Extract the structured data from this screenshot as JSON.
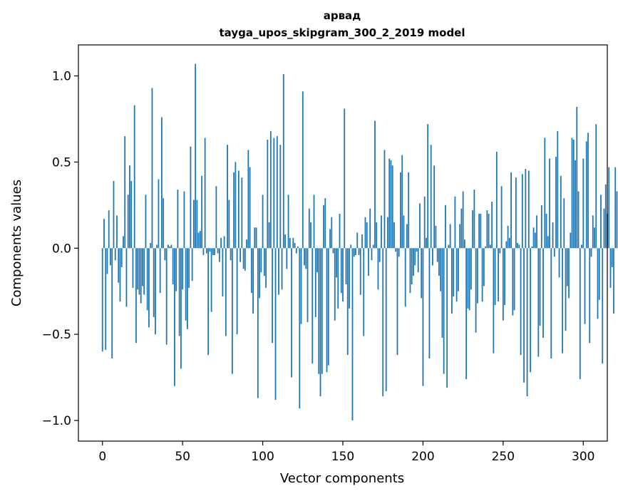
{
  "chart_data": {
    "type": "bar",
    "title": "арвад",
    "subtitle": "tayga_upos_skipgram_300_2_2019 model",
    "xlabel": "Vector components",
    "ylabel": "Components values",
    "xlim": [
      -15,
      315
    ],
    "ylim": [
      -1.12,
      1.18
    ],
    "xticks": [
      0,
      50,
      100,
      150,
      200,
      250,
      300
    ],
    "yticks": [
      1.0,
      0.5,
      0.0,
      -0.5,
      -1.0
    ],
    "xtick_labels": [
      "0",
      "50",
      "100",
      "150",
      "200",
      "250",
      "300"
    ],
    "ytick_labels": [
      "1.0",
      "0.5",
      "0.0",
      "−0.5",
      "−1.0"
    ],
    "grid": false,
    "bar_color": "#1f77b4",
    "values": [
      -0.6,
      0.17,
      -0.59,
      -0.15,
      0.22,
      -0.1,
      -0.64,
      0.39,
      -0.07,
      0.19,
      -0.2,
      -0.31,
      -0.11,
      0.07,
      0.65,
      -0.34,
      0.31,
      0.48,
      0.39,
      -0.23,
      0.83,
      -0.55,
      -0.24,
      -0.27,
      -0.32,
      -0.22,
      -0.27,
      0.31,
      -0.36,
      -0.46,
      0.03,
      0.93,
      -0.4,
      -0.5,
      0.02,
      0.4,
      -0.26,
      0.76,
      0.29,
      -0.07,
      -0.56,
      0.02,
      0.01,
      0.02,
      -0.21,
      -0.8,
      -0.25,
      0.34,
      -0.51,
      -0.7,
      -0.24,
      0.33,
      -0.42,
      -0.47,
      -0.23,
      0.59,
      -0.19,
      0.28,
      1.07,
      0.28,
      0.09,
      0.1,
      0.42,
      -0.04,
      0.64,
      -0.03,
      -0.62,
      -0.02,
      -0.37,
      -0.04,
      -0.04,
      0.36,
      -0.03,
      -0.08,
      0.06,
      -0.28,
      0.07,
      -0.51,
      0.6,
      0.28,
      -0.07,
      -0.73,
      0.44,
      0.5,
      -0.5,
      0.45,
      -0.08,
      0.41,
      -0.12,
      -0.13,
      0.05,
      0.57,
      0.47,
      -0.26,
      -0.38,
      0.12,
      0.12,
      -0.87,
      -0.29,
      -0.14,
      0.31,
      -0.16,
      -0.23,
      0.63,
      0.15,
      0.68,
      -0.55,
      0.64,
      -0.88,
      0.65,
      -0.27,
      0.6,
      -0.24,
      1.01,
      0.08,
      -0.12,
      0.31,
      0.06,
      -0.75,
      0.06,
      0.03,
      -0.03,
      0.01,
      -0.93,
      -0.44,
      0.91,
      -0.1,
      -0.12,
      -0.43,
      0.23,
      0.15,
      -0.67,
      0.31,
      -0.4,
      -0.14,
      -0.73,
      -0.86,
      -0.73,
      0.25,
      0.29,
      -0.72,
      -0.68,
      0.11,
      0.18,
      -0.03,
      -0.42,
      -0.17,
      -0.35,
      0.2,
      -0.26,
      -0.31,
      0.81,
      -0.21,
      -0.62,
      -0.35,
      0.02,
      -1.0,
      -0.05,
      -0.04,
      0.09,
      -0.04,
      -0.27,
      0.08,
      -0.51,
      0.18,
      0.15,
      -0.16,
      0.23,
      -0.07,
      0.02,
      0.74,
      0.15,
      -0.24,
      -0.08,
      0.19,
      -0.86,
      0.57,
      -0.83,
      0.18,
      0.52,
      0.51,
      0.48,
      0.15,
      -0.02,
      -0.62,
      -0.05,
      0.44,
      0.54,
      0.19,
      -0.34,
      0.14,
      0.44,
      -0.26,
      -0.21,
      -0.16,
      -0.1,
      -0.02,
      -0.14,
      0.26,
      -0.29,
      -0.8,
      0.3,
      0.06,
      0.72,
      -0.64,
      0.6,
      -0.1,
      0.48,
      0.13,
      -0.08,
      -0.16,
      -0.25,
      -0.52,
      -0.73,
      0.25,
      -0.81,
      0.02,
      0.14,
      -0.38,
      -0.28,
      0.3,
      -0.31,
      -0.25,
      0.14,
      0.23,
      0.33,
      0.05,
      -0.76,
      -0.35,
      -0.36,
      -0.24,
      0.22,
      0.34,
      -0.49,
      -0.32,
      0.2,
      0.2,
      -0.31,
      -0.22,
      0.01,
      0.22,
      0.2,
      0.02,
      0.27,
      -0.61,
      -0.33,
      0.56,
      -0.31,
      -0.03,
      0.36,
      -0.42,
      -0.33,
      0.04,
      0.13,
      0.06,
      0.44,
      -0.39,
      -0.36,
      0.41,
      0.03,
      0.02,
      -0.62,
      0.43,
      -0.78,
      0.46,
      -0.86,
      0.45,
      -0.72,
      0.01,
      0.12,
      0.09,
      0.19,
      -0.63,
      -0.45,
      0.25,
      -0.52,
      0.64,
      0.2,
      0.07,
      0.52,
      -0.64,
      0.15,
      -0.05,
      0.53,
      0.68,
      -0.17,
      0.42,
      -0.61,
      0.29,
      -0.48,
      -0.22,
      -0.29,
      0.09,
      0.64,
      0.63,
      0.51,
      0.82,
      0.33,
      -0.76,
      0.02,
      0.52,
      -0.44,
      0.62,
      0.67,
      -0.55,
      -0.05,
      0.19,
      0.12,
      0.72,
      -0.41,
      -0.3,
      0.31,
      -0.67,
      0.23,
      0.37,
      0.2,
      0.47,
      -0.23,
      -0.11,
      -0.38,
      0.47,
      0.33
    ]
  }
}
